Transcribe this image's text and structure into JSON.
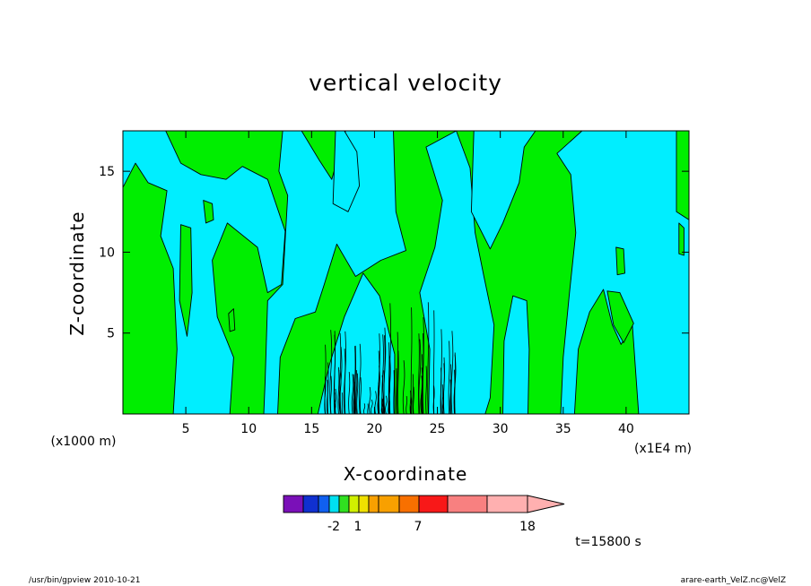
{
  "chart_data": {
    "type": "heatmap",
    "title": "vertical velocity",
    "xlabel": "X-coordinate",
    "ylabel": "Z-coordinate",
    "x_unit_label": "(x1000 m)",
    "x_unit_label_right": "(x1E4 m)",
    "xlim": [
      0,
      45
    ],
    "ylim": [
      0,
      17.5
    ],
    "x_ticks": [
      5,
      10,
      15,
      20,
      25,
      30,
      35,
      40
    ],
    "y_ticks": [
      5,
      10,
      15
    ],
    "grid": false,
    "colorbar": {
      "label_values": [
        "-2",
        "1",
        "7",
        "18"
      ],
      "colors": [
        "#7a10b8",
        "#7a10b8",
        "#1030d0",
        "#1060f0",
        "#00e0f0",
        "#30e020",
        "#d0f000",
        "#f0e000",
        "#f8a000",
        "#f8a000",
        "#f87000",
        "#f81818",
        "#f88080",
        "#ffb0b0"
      ]
    },
    "fields": {
      "background_color": "#00ee00",
      "contour_color": "#00eeff",
      "note": ""
    },
    "annotation_time": "t=15800 s",
    "footer_left": "/usr/bin/gpview   2010-10-21",
    "footer_right": "arare-earth_VelZ.nc@VelZ",
    "regions": [
      {
        "shape": "cyan",
        "points": [
          [
            0,
            14
          ],
          [
            1,
            15.5
          ],
          [
            2,
            14.3
          ],
          [
            3.5,
            13.8
          ],
          [
            3,
            11
          ],
          [
            4,
            9
          ],
          [
            4.3,
            4
          ],
          [
            4,
            0
          ],
          [
            8.5,
            0
          ],
          [
            8.8,
            3.5
          ],
          [
            7.5,
            6
          ],
          [
            7.1,
            9.5
          ],
          [
            8.3,
            11.8
          ],
          [
            10.7,
            10.3
          ],
          [
            11.5,
            7.5
          ],
          [
            12.6,
            8
          ],
          [
            12.9,
            11.3
          ],
          [
            11.5,
            14.5
          ],
          [
            9.5,
            15.3
          ],
          [
            8.2,
            14.5
          ],
          [
            6.2,
            14.8
          ],
          [
            4.6,
            15.5
          ],
          [
            3.4,
            17.5
          ],
          [
            0,
            17.5
          ]
        ]
      },
      {
        "shape": "cyan",
        "points": [
          [
            12.3,
            0
          ],
          [
            12.5,
            3.5
          ],
          [
            13.7,
            5.9
          ],
          [
            15.3,
            6.3
          ],
          [
            16,
            8
          ],
          [
            17,
            10.5
          ],
          [
            18.5,
            8.5
          ],
          [
            20.5,
            9.5
          ],
          [
            22.5,
            10.1
          ],
          [
            21.7,
            12.5
          ],
          [
            21.5,
            17.5
          ],
          [
            17.7,
            17.5
          ],
          [
            16.6,
            14.5
          ],
          [
            15.6,
            15.7
          ],
          [
            14.2,
            17.5
          ],
          [
            12.7,
            17.5
          ],
          [
            12.4,
            15
          ],
          [
            13.1,
            13.5
          ],
          [
            12.7,
            8
          ],
          [
            11.5,
            7
          ],
          [
            11.3,
            2
          ],
          [
            11.2,
            0
          ]
        ]
      },
      {
        "shape": "cyan",
        "points": [
          [
            15.5,
            0
          ],
          [
            16.4,
            3
          ],
          [
            17.6,
            6
          ],
          [
            19.1,
            8.7
          ],
          [
            20.4,
            7.3
          ],
          [
            21.6,
            3.7
          ],
          [
            21.6,
            0
          ]
        ]
      },
      {
        "shape": "cyan",
        "points": [
          [
            24.3,
            0
          ],
          [
            24.4,
            4
          ],
          [
            23.6,
            7.5
          ],
          [
            24.8,
            10.3
          ],
          [
            25.4,
            13.2
          ],
          [
            24.1,
            16.5
          ],
          [
            26.5,
            17.5
          ],
          [
            27.6,
            15.2
          ],
          [
            28,
            11.2
          ],
          [
            28.7,
            8.5
          ],
          [
            29.5,
            5.5
          ],
          [
            29.2,
            1
          ],
          [
            28.8,
            0
          ]
        ]
      },
      {
        "shape": "cyan",
        "points": [
          [
            27.9,
            17.5
          ],
          [
            27.7,
            12.5
          ],
          [
            29.2,
            10.2
          ],
          [
            30.2,
            11.8
          ],
          [
            31.5,
            14.3
          ],
          [
            31.9,
            16.5
          ],
          [
            32.8,
            17.5
          ]
        ]
      },
      {
        "shape": "cyan",
        "points": [
          [
            30.2,
            0
          ],
          [
            30.3,
            4.5
          ],
          [
            31,
            7.3
          ],
          [
            32.1,
            7
          ],
          [
            32.3,
            4
          ],
          [
            32.2,
            0
          ]
        ]
      },
      {
        "shape": "cyan",
        "points": [
          [
            34.8,
            0
          ],
          [
            35,
            3.5
          ],
          [
            35.5,
            7.5
          ],
          [
            36,
            11.2
          ],
          [
            35.6,
            14.8
          ],
          [
            34.5,
            16.1
          ],
          [
            36.5,
            17.5
          ],
          [
            44,
            17.5
          ],
          [
            44,
            12.5
          ],
          [
            45,
            12
          ],
          [
            45,
            0
          ],
          [
            41,
            0
          ],
          [
            40.5,
            5.5
          ],
          [
            39.6,
            4.3
          ],
          [
            38.9,
            5.5
          ],
          [
            38.2,
            7.7
          ],
          [
            37.1,
            6.3
          ],
          [
            36.2,
            4
          ],
          [
            35.9,
            0
          ]
        ]
      },
      {
        "shape": "cyan",
        "points": [
          [
            16.7,
            13
          ],
          [
            17.9,
            12.5
          ],
          [
            18.8,
            14.1
          ],
          [
            18.6,
            16.2
          ],
          [
            17.6,
            17.5
          ],
          [
            16.9,
            17.5
          ]
        ]
      },
      {
        "shape": "green",
        "points": [
          [
            4.6,
            11.7
          ],
          [
            5.4,
            11.5
          ],
          [
            5.5,
            7.5
          ],
          [
            5.1,
            4.8
          ],
          [
            4.5,
            7
          ]
        ]
      },
      {
        "shape": "green",
        "points": [
          [
            39.2,
            10.3
          ],
          [
            39.8,
            10.2
          ],
          [
            39.9,
            8.7
          ],
          [
            39.3,
            8.6
          ]
        ]
      },
      {
        "shape": "green",
        "points": [
          [
            8.4,
            6.2
          ],
          [
            8.8,
            6.5
          ],
          [
            8.9,
            5.2
          ],
          [
            8.5,
            5.1
          ]
        ]
      },
      {
        "shape": "green",
        "points": [
          [
            38.5,
            7.6
          ],
          [
            39.5,
            7.5
          ],
          [
            40.6,
            5.6
          ],
          [
            39.8,
            4.4
          ],
          [
            39,
            5.5
          ]
        ]
      },
      {
        "shape": "green",
        "points": [
          [
            6.4,
            13.2
          ],
          [
            7.1,
            13
          ],
          [
            7.2,
            12
          ],
          [
            6.6,
            11.8
          ]
        ]
      },
      {
        "shape": "green",
        "points": [
          [
            44.2,
            11.8
          ],
          [
            44.6,
            11.5
          ],
          [
            44.6,
            9.8
          ],
          [
            44.2,
            9.9
          ]
        ]
      }
    ]
  }
}
